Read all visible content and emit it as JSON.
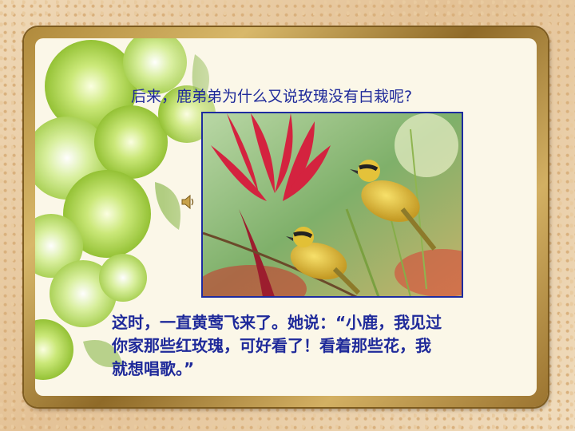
{
  "slide": {
    "question": "后来，鹿弟弟为什么又说玫瑰没有白栽呢?",
    "paragraph_lines": [
      "这时，一直黄莺飞来了。她说：“小鹿，我见过",
      "你家那些红玫瑰，可好看了！看着那些花，我",
      "就想唱歌。”"
    ],
    "speaker_icon": "speaker-icon",
    "photo_subject": "birds-on-red-flower-photo"
  },
  "colors": {
    "text": "#1f2a9a",
    "frame_gold": "#b08a3c",
    "panel": "#fbf7e8",
    "flower_green": "#9ccc3a"
  }
}
